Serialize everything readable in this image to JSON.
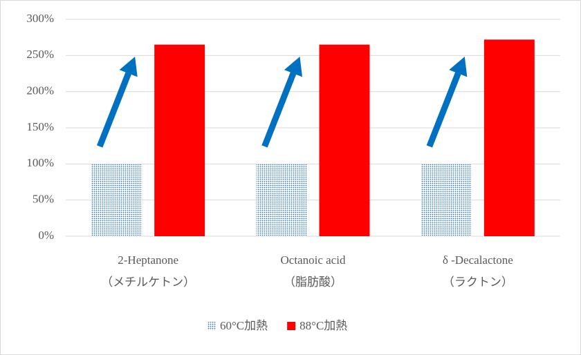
{
  "chart_data": {
    "type": "bar",
    "categories": [
      [
        "2-Heptanone",
        "（メチルケトン）"
      ],
      [
        "Octanoic acid",
        "（脂肪酸）"
      ],
      [
        "δ -Decalactone",
        "（ラクトン）"
      ]
    ],
    "series": [
      {
        "name": "60°C加熱",
        "color": "#2e75b6",
        "fill_pattern": "dots",
        "values": [
          100,
          100,
          100
        ]
      },
      {
        "name": "88°C加熱",
        "color": "#ff0000",
        "fill_pattern": "solid",
        "values": [
          265,
          265,
          272
        ]
      }
    ],
    "ylim": [
      0,
      300
    ],
    "yticks": [
      {
        "value": 0,
        "label": "0%"
      },
      {
        "value": 50,
        "label": "50%"
      },
      {
        "value": 100,
        "label": "100%"
      },
      {
        "value": 150,
        "label": "150%"
      },
      {
        "value": 200,
        "label": "200%"
      },
      {
        "value": 250,
        "label": "250%"
      },
      {
        "value": 300,
        "label": "300%"
      }
    ],
    "grid": true,
    "legend": "bottom"
  }
}
